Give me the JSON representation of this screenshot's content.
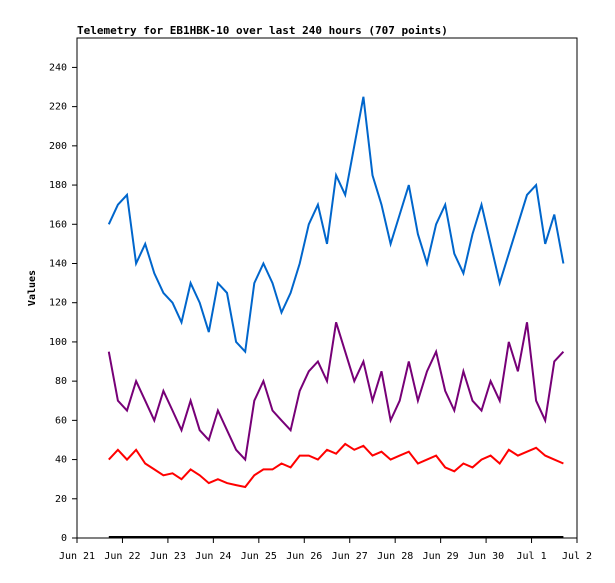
{
  "chart_data": {
    "type": "line",
    "title": "Telemetry for EB1HBK-10 over last 240 hours (707 points)",
    "ylabel": "Values",
    "x": [
      0.7,
      0.9,
      1.1,
      1.3,
      1.5,
      1.7,
      1.9,
      2.1,
      2.3,
      2.5,
      2.7,
      2.9,
      3.1,
      3.3,
      3.5,
      3.7,
      3.9,
      4.1,
      4.3,
      4.5,
      4.7,
      4.9,
      5.1,
      5.3,
      5.5,
      5.7,
      5.9,
      6.1,
      6.3,
      6.5,
      6.7,
      6.9,
      7.1,
      7.3,
      7.5,
      7.7,
      7.9,
      8.1,
      8.3,
      8.5,
      8.7,
      8.9,
      9.1,
      9.3,
      9.5,
      9.7,
      9.9,
      10.1,
      10.3,
      10.5,
      10.7
    ],
    "series": [
      {
        "color": "#0066cc",
        "values": [
          160,
          170,
          175,
          140,
          150,
          135,
          125,
          120,
          110,
          130,
          120,
          105,
          130,
          125,
          100,
          95,
          130,
          140,
          130,
          115,
          125,
          140,
          160,
          170,
          150,
          185,
          175,
          200,
          225,
          185,
          170,
          150,
          165,
          180,
          155,
          140,
          160,
          170,
          145,
          135,
          155,
          170,
          150,
          130,
          145,
          160,
          175,
          180,
          150,
          165,
          140
        ]
      },
      {
        "color": "#770077",
        "values": [
          95,
          70,
          65,
          80,
          70,
          60,
          75,
          65,
          55,
          70,
          55,
          50,
          65,
          55,
          45,
          40,
          70,
          80,
          65,
          60,
          55,
          75,
          85,
          90,
          80,
          110,
          95,
          80,
          90,
          70,
          85,
          60,
          70,
          90,
          70,
          85,
          95,
          75,
          65,
          85,
          70,
          65,
          80,
          70,
          100,
          85,
          110,
          70,
          60,
          90,
          95
        ]
      },
      {
        "color": "#ff0000",
        "values": [
          40,
          45,
          40,
          45,
          38,
          35,
          32,
          33,
          30,
          35,
          32,
          28,
          30,
          28,
          27,
          26,
          32,
          35,
          35,
          38,
          36,
          42,
          42,
          40,
          45,
          43,
          48,
          45,
          47,
          42,
          44,
          40,
          42,
          44,
          38,
          40,
          42,
          36,
          34,
          38,
          36,
          40,
          42,
          38,
          45,
          42,
          44,
          46,
          42,
          40,
          38
        ]
      },
      {
        "color": "#000000",
        "x": [
          0.7,
          10.7
        ],
        "values": [
          0.5,
          0.5
        ]
      }
    ],
    "xlim": [
      0,
      11
    ],
    "xticks": [
      {
        "value": 0,
        "label": "Jun 21"
      },
      {
        "value": 1,
        "label": "Jun 22"
      },
      {
        "value": 2,
        "label": "Jun 23"
      },
      {
        "value": 3,
        "label": "Jun 24"
      },
      {
        "value": 4,
        "label": "Jun 25"
      },
      {
        "value": 5,
        "label": "Jun 26"
      },
      {
        "value": 6,
        "label": "Jun 27"
      },
      {
        "value": 7,
        "label": "Jun 28"
      },
      {
        "value": 8,
        "label": "Jun 29"
      },
      {
        "value": 9,
        "label": "Jun 30"
      },
      {
        "value": 10,
        "label": "Jul 1"
      },
      {
        "value": 11,
        "label": "Jul 2"
      }
    ],
    "ylim": [
      0,
      255
    ],
    "yticks": [
      0,
      20,
      40,
      60,
      80,
      100,
      120,
      140,
      160,
      180,
      200,
      220,
      240
    ]
  }
}
